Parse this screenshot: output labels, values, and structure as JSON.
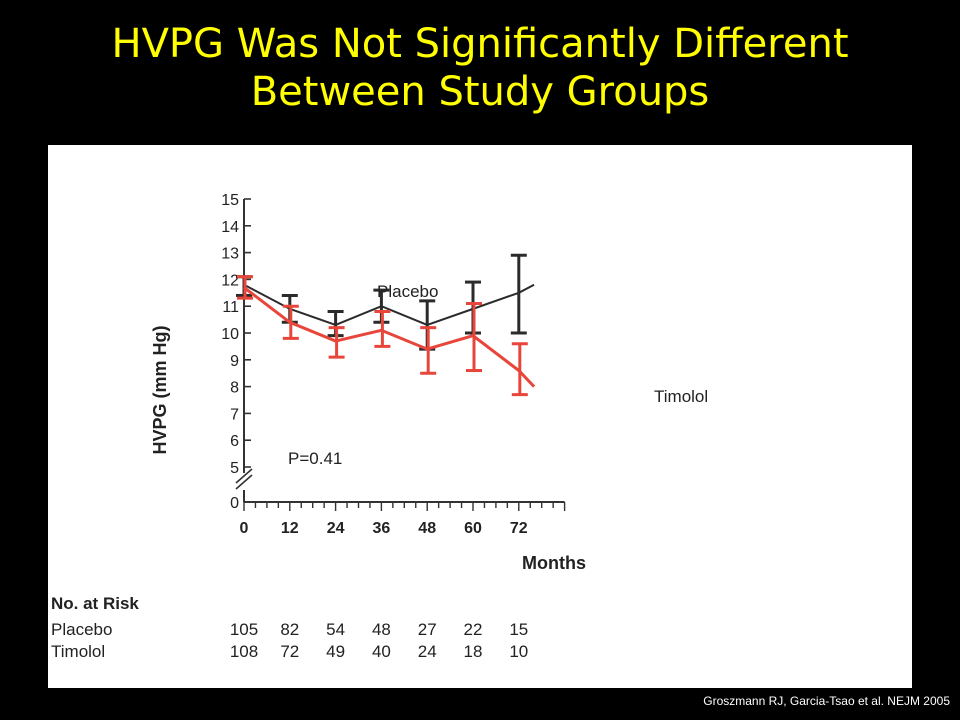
{
  "slide": {
    "title_line1": "HVPG Was Not Significantly Different",
    "title_line2": "Between Study Groups",
    "citation": "Groszmann RJ, Garcia-Tsao et al. NEJM 2005"
  },
  "chart_data": {
    "type": "line",
    "title": "",
    "xlabel": "Months",
    "ylabel": "HVPG (mm Hg)",
    "xlim": [
      0,
      84
    ],
    "ylim": [
      0,
      15
    ],
    "y_axis_break": [
      0,
      5
    ],
    "x_ticks": [
      0,
      12,
      24,
      36,
      48,
      60,
      72
    ],
    "y_ticks": [
      0,
      5,
      6,
      7,
      8,
      9,
      10,
      11,
      12,
      13,
      14,
      15
    ],
    "annotation": "P=0.41",
    "series": [
      {
        "name": "Placebo",
        "color": "#2b2b2b",
        "x": [
          0,
          12,
          24,
          36,
          48,
          60,
          72
        ],
        "y": [
          11.8,
          10.9,
          10.3,
          11.0,
          10.3,
          10.9,
          11.5
        ],
        "err_low": [
          11.4,
          10.4,
          9.9,
          10.4,
          9.4,
          10.0,
          10.0
        ],
        "err_high": [
          12.1,
          11.4,
          10.8,
          11.6,
          11.2,
          11.9,
          12.9
        ],
        "end": {
          "x": 76,
          "y": 11.8
        }
      },
      {
        "name": "Timolol",
        "color": "#e8463a",
        "x": [
          0,
          12,
          24,
          36,
          48,
          60,
          72
        ],
        "y": [
          11.7,
          10.4,
          9.7,
          10.1,
          9.4,
          9.9,
          8.6
        ],
        "err_low": [
          11.3,
          9.8,
          9.1,
          9.5,
          8.5,
          8.6,
          7.7
        ],
        "err_high": [
          12.1,
          11.0,
          10.2,
          10.8,
          10.2,
          11.1,
          9.6
        ],
        "end": {
          "x": 76,
          "y": 8.0
        }
      }
    ],
    "risk_table": {
      "header": "No. at Risk",
      "rows": [
        {
          "label": "Placebo",
          "values": [
            "105",
            "82",
            "54",
            "48",
            "27",
            "22",
            "15"
          ]
        },
        {
          "label": "Timolol",
          "values": [
            "108",
            "72",
            "49",
            "40",
            "24",
            "18",
            "10"
          ]
        }
      ]
    }
  }
}
